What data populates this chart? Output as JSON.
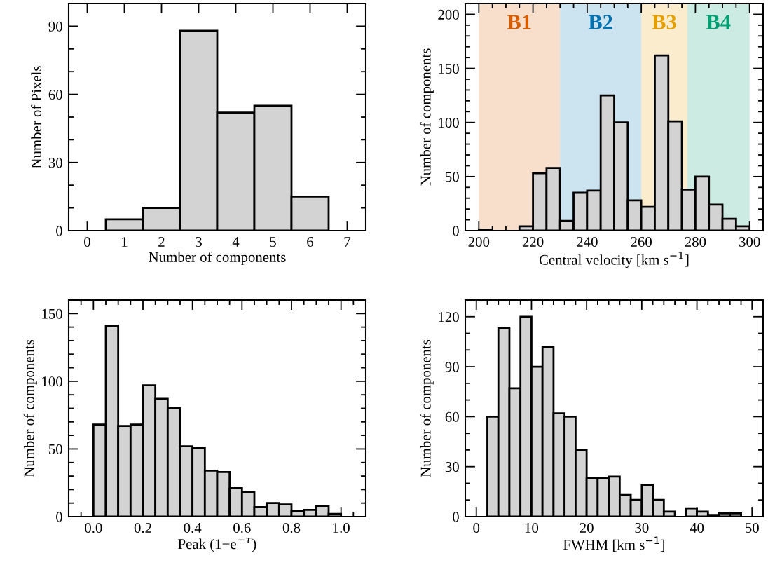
{
  "chart_data": [
    {
      "type": "histogram",
      "xlabel": "Number of components",
      "ylabel": "Number of Pixels",
      "color": "#d3d3d3",
      "bins": [
        0.5,
        1.5,
        2.5,
        3.5,
        4.5,
        5.5,
        6.5
      ],
      "values": [
        5,
        10,
        88,
        52,
        55,
        15
      ],
      "xlim": [
        -0.5,
        7.5
      ],
      "xticks": [
        0,
        1,
        2,
        3,
        4,
        5,
        6,
        7
      ],
      "ylim": [
        0,
        100
      ],
      "yticks": [
        0,
        {
          "value": 10,
          "label": null
        },
        {
          "value": 20,
          "label": null
        },
        30,
        {
          "value": 40,
          "label": null
        },
        {
          "value": 50,
          "label": null
        },
        60,
        {
          "value": 70,
          "label": null
        },
        {
          "value": 80,
          "label": null
        },
        90
      ]
    },
    {
      "type": "histogram",
      "xlabel": "Central velocity [km s$^{−1}$]",
      "ylabel": "Number of components",
      "color": "#d3d3d3",
      "bins": [
        200,
        205,
        210,
        215,
        220,
        225,
        230,
        235,
        240,
        245,
        250,
        255,
        260,
        265,
        270,
        275,
        280,
        285,
        290,
        295,
        300
      ],
      "values": [
        1,
        0,
        0,
        4,
        53,
        58,
        9,
        35,
        37,
        125,
        100,
        28,
        22,
        162,
        101,
        38,
        50,
        24,
        11,
        4
      ],
      "xlim": [
        195,
        305
      ],
      "xticks": [
        200,
        {
          "value": 205,
          "label": null
        },
        {
          "value": 210,
          "label": null
        },
        {
          "value": 215,
          "label": null
        },
        220,
        {
          "value": 225,
          "label": null
        },
        {
          "value": 230,
          "label": null
        },
        {
          "value": 235,
          "label": null
        },
        240,
        {
          "value": 245,
          "label": null
        },
        {
          "value": 250,
          "label": null
        },
        {
          "value": 255,
          "label": null
        },
        260,
        {
          "value": 265,
          "label": null
        },
        {
          "value": 270,
          "label": null
        },
        {
          "value": 275,
          "label": null
        },
        280,
        {
          "value": 285,
          "label": null
        },
        {
          "value": 290,
          "label": null
        },
        {
          "value": 295,
          "label": null
        },
        300
      ],
      "ylim": [
        0,
        210
      ],
      "yticks": [
        0,
        {
          "value": 10,
          "label": null
        },
        {
          "value": 20,
          "label": null
        },
        {
          "value": 30,
          "label": null
        },
        {
          "value": 40,
          "label": null
        },
        50,
        {
          "value": 60,
          "label": null
        },
        {
          "value": 70,
          "label": null
        },
        {
          "value": 80,
          "label": null
        },
        {
          "value": 90,
          "label": null
        },
        100,
        {
          "value": 110,
          "label": null
        },
        {
          "value": 120,
          "label": null
        },
        {
          "value": 130,
          "label": null
        },
        {
          "value": 140,
          "label": null
        },
        150,
        {
          "value": 160,
          "label": null
        },
        {
          "value": 170,
          "label": null
        },
        {
          "value": 180,
          "label": null
        },
        {
          "value": 190,
          "label": null
        },
        200
      ],
      "bands": [
        {
          "axis": "x",
          "from": 200,
          "to": 230,
          "label": "B1",
          "color": "#d55e00"
        },
        {
          "axis": "x",
          "from": 230,
          "to": 260,
          "label": "B2",
          "color": "#0072b2"
        },
        {
          "axis": "x",
          "from": 260,
          "to": 277,
          "label": "B3",
          "color": "#e69f00"
        },
        {
          "axis": "x",
          "from": 277,
          "to": 300,
          "label": "B4",
          "color": "#009e73"
        }
      ]
    },
    {
      "type": "histogram",
      "xlabel": "Peak (1−e$^{−τ}$)",
      "ylabel": "Number of components",
      "color": "#d3d3d3",
      "bins": [
        0.0,
        0.05,
        0.1,
        0.15,
        0.2,
        0.25,
        0.3,
        0.35,
        0.4,
        0.45,
        0.5,
        0.55,
        0.6,
        0.65,
        0.7,
        0.75,
        0.8,
        0.85,
        0.9,
        0.95,
        1.0
      ],
      "values": [
        68,
        141,
        67,
        68,
        97,
        87,
        80,
        52,
        51,
        34,
        33,
        21,
        18,
        7,
        10,
        9,
        4,
        5,
        8,
        2
      ],
      "xlim": [
        -0.1,
        1.1
      ],
      "xticks": [
        {
          "value": -0.05,
          "label": null
        },
        {
          "value": 0.0,
          "label": "0.0"
        },
        {
          "value": 0.05,
          "label": null
        },
        {
          "value": 0.1,
          "label": null
        },
        {
          "value": 0.15,
          "label": null
        },
        {
          "value": 0.2,
          "label": "0.2"
        },
        {
          "value": 0.25,
          "label": null
        },
        {
          "value": 0.3,
          "label": null
        },
        {
          "value": 0.35,
          "label": null
        },
        {
          "value": 0.4,
          "label": "0.4"
        },
        {
          "value": 0.45,
          "label": null
        },
        {
          "value": 0.5,
          "label": null
        },
        {
          "value": 0.55,
          "label": null
        },
        {
          "value": 0.6,
          "label": "0.6"
        },
        {
          "value": 0.65,
          "label": null
        },
        {
          "value": 0.7,
          "label": null
        },
        {
          "value": 0.75,
          "label": null
        },
        {
          "value": 0.8,
          "label": "0.8"
        },
        {
          "value": 0.85,
          "label": null
        },
        {
          "value": 0.9,
          "label": null
        },
        {
          "value": 0.95,
          "label": null
        },
        {
          "value": 1.0,
          "label": "1.0"
        },
        {
          "value": 1.05,
          "label": null
        }
      ],
      "ylim": [
        0,
        160
      ],
      "yticks": [
        0,
        {
          "value": 10,
          "label": null
        },
        {
          "value": 20,
          "label": null
        },
        {
          "value": 30,
          "label": null
        },
        {
          "value": 40,
          "label": null
        },
        50,
        {
          "value": 60,
          "label": null
        },
        {
          "value": 70,
          "label": null
        },
        {
          "value": 80,
          "label": null
        },
        {
          "value": 90,
          "label": null
        },
        100,
        {
          "value": 110,
          "label": null
        },
        {
          "value": 120,
          "label": null
        },
        {
          "value": 130,
          "label": null
        },
        {
          "value": 140,
          "label": null
        },
        150
      ]
    },
    {
      "type": "histogram",
      "xlabel": "FWHM [km s$^{−1}$]",
      "ylabel": "Number of components",
      "color": "#d3d3d3",
      "bins": [
        2,
        4,
        6,
        8,
        10,
        12,
        14,
        16,
        18,
        20,
        22,
        24,
        26,
        28,
        30,
        32,
        34,
        36,
        38,
        40,
        42,
        44,
        46,
        48
      ],
      "values": [
        60,
        113,
        77,
        120,
        90,
        102,
        62,
        60,
        40,
        23,
        23,
        24,
        13,
        10,
        19,
        10,
        3,
        0,
        5,
        3,
        1,
        2,
        2
      ],
      "xlim": [
        -2,
        52
      ],
      "xticks": [
        0,
        {
          "value": 2,
          "label": null
        },
        {
          "value": 4,
          "label": null
        },
        {
          "value": 6,
          "label": null
        },
        {
          "value": 8,
          "label": null
        },
        10,
        {
          "value": 12,
          "label": null
        },
        {
          "value": 14,
          "label": null
        },
        {
          "value": 16,
          "label": null
        },
        {
          "value": 18,
          "label": null
        },
        20,
        {
          "value": 22,
          "label": null
        },
        {
          "value": 24,
          "label": null
        },
        {
          "value": 26,
          "label": null
        },
        {
          "value": 28,
          "label": null
        },
        30,
        {
          "value": 32,
          "label": null
        },
        {
          "value": 34,
          "label": null
        },
        {
          "value": 36,
          "label": null
        },
        {
          "value": 38,
          "label": null
        },
        40,
        {
          "value": 42,
          "label": null
        },
        {
          "value": 44,
          "label": null
        },
        {
          "value": 46,
          "label": null
        },
        {
          "value": 48,
          "label": null
        },
        50
      ],
      "ylim": [
        0,
        130
      ],
      "yticks": [
        0,
        {
          "value": 10,
          "label": null
        },
        {
          "value": 20,
          "label": null
        },
        30,
        {
          "value": 40,
          "label": null
        },
        {
          "value": 50,
          "label": null
        },
        60,
        {
          "value": 70,
          "label": null
        },
        {
          "value": 80,
          "label": null
        },
        90,
        {
          "value": 100,
          "label": null
        },
        {
          "value": 110,
          "label": null
        },
        120
      ]
    }
  ]
}
